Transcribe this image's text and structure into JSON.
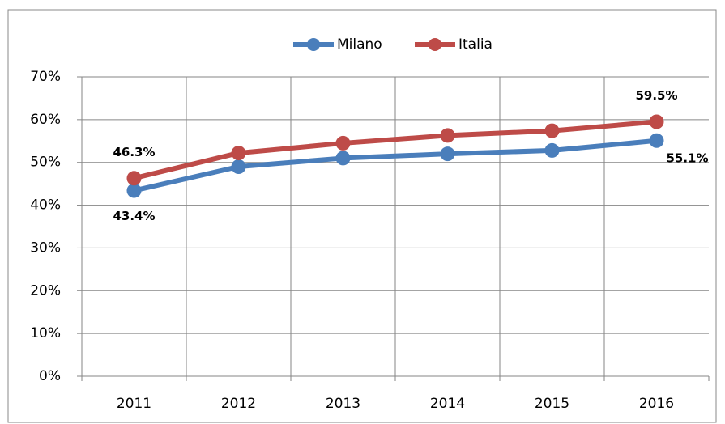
{
  "chart_data": {
    "type": "line",
    "categories": [
      "2011",
      "2012",
      "2013",
      "2014",
      "2015",
      "2016"
    ],
    "series": [
      {
        "name": "Milano",
        "color": "#4a7ebb",
        "values": [
          43.4,
          49,
          51,
          52,
          52.8,
          55.1
        ],
        "value_labels": [
          "43.4%",
          null,
          null,
          null,
          null,
          "55.1%"
        ]
      },
      {
        "name": "Italia",
        "color": "#be4b48",
        "values": [
          46.3,
          52.2,
          54.5,
          56.3,
          57.4,
          59.5
        ],
        "value_labels": [
          "46.3%",
          null,
          null,
          null,
          null,
          "59.5%"
        ]
      }
    ],
    "ylim": [
      0,
      70
    ],
    "yticks": [
      {
        "value": 0,
        "label": "0%"
      },
      {
        "value": 10,
        "label": "10%"
      },
      {
        "value": 20,
        "label": "20%"
      },
      {
        "value": 30,
        "label": "30%"
      },
      {
        "value": 40,
        "label": "40%"
      },
      {
        "value": 50,
        "label": "50%"
      },
      {
        "value": 60,
        "label": "60%"
      },
      {
        "value": 70,
        "label": "70%"
      }
    ],
    "grid": true,
    "legend": "top"
  }
}
